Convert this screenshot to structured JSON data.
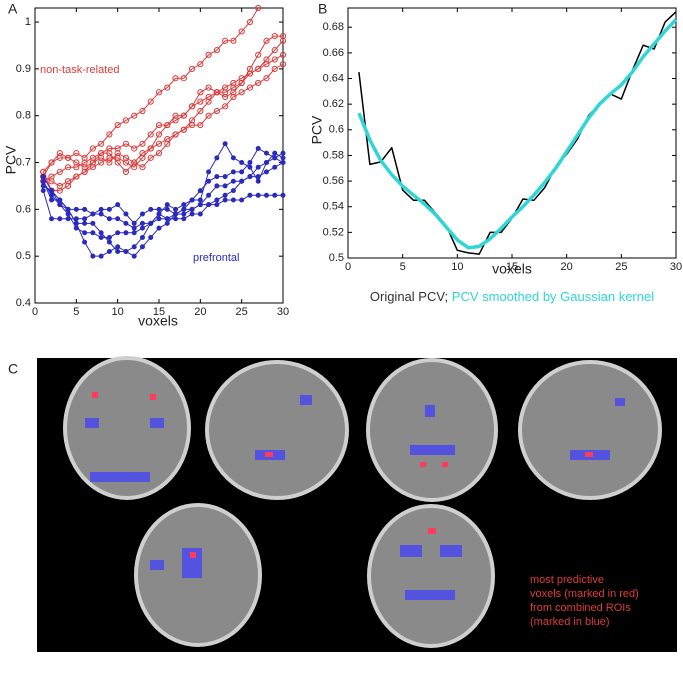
{
  "chart_data": [
    {
      "type": "line",
      "panel_label": "A",
      "x_label": "voxels",
      "y_label": "PCV",
      "x": [
        1,
        2,
        3,
        4,
        5,
        6,
        7,
        8,
        9,
        10,
        11,
        12,
        13,
        14,
        15,
        16,
        17,
        18,
        19,
        20,
        21,
        22,
        23,
        24,
        25,
        26,
        27,
        28,
        29,
        30
      ],
      "xlim": [
        0,
        30
      ],
      "xticks": [
        0,
        5,
        10,
        15,
        20,
        25,
        30
      ],
      "ylim": [
        0.4,
        1.03
      ],
      "yticks": [
        0.4,
        0.5,
        0.6,
        0.7,
        0.8,
        0.9,
        1
      ],
      "series": [
        {
          "color": "#e03a3a",
          "marker": "circle-open",
          "values": [
            0.67,
            0.7,
            0.72,
            0.71,
            0.72,
            0.71,
            0.73,
            0.74,
            0.76,
            0.78,
            0.79,
            0.8,
            0.81,
            0.83,
            0.85,
            0.86,
            0.88,
            0.88,
            0.9,
            0.91,
            0.93,
            0.94,
            0.96,
            0.96,
            0.98,
            1.0,
            1.03,
            null,
            null,
            null
          ]
        },
        {
          "color": "#e03a3a",
          "marker": "circle-open",
          "values": [
            0.68,
            0.7,
            0.71,
            0.71,
            0.7,
            0.69,
            0.7,
            0.71,
            0.7,
            0.72,
            0.71,
            0.7,
            0.72,
            0.73,
            0.76,
            0.78,
            0.8,
            0.8,
            0.82,
            0.85,
            0.86,
            0.85,
            0.85,
            0.86,
            0.87,
            0.9,
            0.93,
            0.96,
            0.97,
            0.97
          ]
        },
        {
          "color": "#e03a3a",
          "marker": "circle-open",
          "values": [
            0.66,
            0.67,
            0.68,
            0.69,
            0.69,
            0.7,
            0.71,
            0.72,
            0.73,
            0.73,
            0.74,
            0.73,
            0.74,
            0.76,
            0.78,
            0.78,
            0.79,
            0.8,
            0.82,
            0.83,
            0.84,
            0.85,
            0.84,
            0.85,
            0.87,
            0.89,
            0.9,
            0.92,
            0.94,
            0.96
          ]
        },
        {
          "color": "#e03a3a",
          "marker": "circle-open",
          "values": [
            0.67,
            0.66,
            0.65,
            0.66,
            0.67,
            0.68,
            0.69,
            0.7,
            0.71,
            0.71,
            0.7,
            0.69,
            0.71,
            0.73,
            0.74,
            0.75,
            0.76,
            0.77,
            0.79,
            0.81,
            0.83,
            0.85,
            0.86,
            0.87,
            0.88,
            0.89,
            0.9,
            0.91,
            0.92,
            0.93
          ]
        },
        {
          "color": "#e03a3a",
          "marker": "circle-open",
          "values": [
            0.68,
            0.64,
            0.64,
            0.65,
            0.67,
            0.68,
            0.7,
            0.72,
            0.72,
            0.7,
            0.68,
            0.7,
            0.69,
            0.71,
            0.72,
            0.74,
            0.76,
            0.77,
            0.78,
            0.78,
            0.8,
            0.81,
            0.82,
            0.84,
            0.85,
            0.86,
            0.87,
            0.88,
            0.9,
            0.91
          ]
        },
        {
          "color": "#2a2abf",
          "marker": "dot",
          "values": [
            0.67,
            0.64,
            0.61,
            0.6,
            0.6,
            0.6,
            0.59,
            0.6,
            0.6,
            0.61,
            0.59,
            0.57,
            0.59,
            0.6,
            0.6,
            0.6,
            0.59,
            0.6,
            0.62,
            0.62,
            0.68,
            0.71,
            0.74,
            0.71,
            0.7,
            0.69,
            0.66,
            0.7,
            0.71,
            0.7
          ]
        },
        {
          "color": "#2a2abf",
          "marker": "dot",
          "values": [
            0.66,
            0.62,
            0.62,
            0.6,
            0.57,
            0.57,
            0.57,
            0.55,
            0.53,
            0.51,
            0.51,
            0.52,
            0.54,
            0.57,
            0.59,
            0.61,
            0.6,
            0.61,
            0.62,
            0.64,
            0.66,
            0.67,
            0.67,
            0.68,
            0.68,
            0.7,
            0.73,
            0.72,
            0.71,
            0.72
          ]
        },
        {
          "color": "#2a2abf",
          "marker": "dot",
          "values": [
            0.65,
            0.64,
            0.62,
            0.6,
            0.57,
            0.53,
            0.5,
            0.5,
            0.51,
            0.52,
            0.51,
            0.5,
            0.52,
            0.54,
            0.56,
            0.57,
            0.59,
            0.59,
            0.6,
            0.61,
            0.63,
            0.65,
            0.65,
            0.66,
            0.66,
            0.67,
            0.67,
            0.68,
            0.69,
            0.7
          ]
        },
        {
          "color": "#2a2abf",
          "marker": "dot",
          "values": [
            0.66,
            0.63,
            0.61,
            0.59,
            0.56,
            0.55,
            0.55,
            0.54,
            0.54,
            0.55,
            0.55,
            0.55,
            0.56,
            0.57,
            0.58,
            0.58,
            0.58,
            0.58,
            0.59,
            0.59,
            0.61,
            0.62,
            0.63,
            0.64,
            0.66,
            0.67,
            0.69,
            0.7,
            0.72,
            0.71
          ]
        },
        {
          "color": "#2a2abf",
          "marker": "dot",
          "values": [
            0.64,
            0.58,
            0.58,
            0.58,
            0.58,
            0.58,
            0.59,
            0.59,
            0.58,
            0.58,
            0.57,
            0.56,
            0.57,
            0.57,
            0.59,
            0.58,
            0.59,
            0.6,
            0.6,
            0.61,
            0.61,
            0.61,
            0.62,
            0.62,
            0.62,
            0.63,
            0.63,
            0.63,
            0.63,
            0.63
          ]
        }
      ],
      "annotations": [
        {
          "text": "non-task-related",
          "color": "#e03a3a"
        },
        {
          "text": "prefrontal",
          "color": "#2a2abf"
        }
      ]
    },
    {
      "type": "line",
      "panel_label": "B",
      "x_label": "voxels",
      "y_label": "PCV",
      "x": [
        1,
        2,
        3,
        4,
        5,
        6,
        7,
        8,
        9,
        10,
        11,
        12,
        13,
        14,
        15,
        16,
        17,
        18,
        19,
        20,
        21,
        22,
        23,
        24,
        25,
        26,
        27,
        28,
        29,
        30
      ],
      "xlim": [
        0,
        30
      ],
      "xticks": [
        0,
        5,
        10,
        15,
        20,
        25,
        30
      ],
      "ylim": [
        0.5,
        0.695
      ],
      "yticks": [
        0.5,
        0.52,
        0.54,
        0.56,
        0.58,
        0.6,
        0.62,
        0.64,
        0.66,
        0.68
      ],
      "legend_separator": ";",
      "series": [
        {
          "name": "Original PCV",
          "color": "#000000",
          "width": 1.5,
          "values": [
            0.645,
            0.573,
            0.575,
            0.586,
            0.553,
            0.545,
            0.545,
            0.535,
            0.525,
            0.506,
            0.504,
            0.503,
            0.52,
            0.52,
            0.531,
            0.546,
            0.545,
            0.555,
            0.571,
            0.581,
            0.593,
            0.611,
            0.62,
            0.628,
            0.624,
            0.646,
            0.666,
            0.663,
            0.684,
            0.692
          ]
        },
        {
          "name": "PCV smoothed by Gaussian kernel",
          "color": "#2fd6d6",
          "width": 3.5,
          "values": [
            0.613,
            0.592,
            0.576,
            0.565,
            0.556,
            0.549,
            0.542,
            0.534,
            0.524,
            0.514,
            0.508,
            0.509,
            0.515,
            0.523,
            0.532,
            0.54,
            0.549,
            0.559,
            0.57,
            0.583,
            0.596,
            0.609,
            0.62,
            0.628,
            0.635,
            0.645,
            0.657,
            0.667,
            0.677,
            0.686
          ]
        }
      ]
    }
  ],
  "panel_c": {
    "label": "C",
    "caption_lines": [
      "most predictive",
      "voxels (marked in red)",
      "from combined ROIs",
      "(marked in blue)"
    ]
  }
}
